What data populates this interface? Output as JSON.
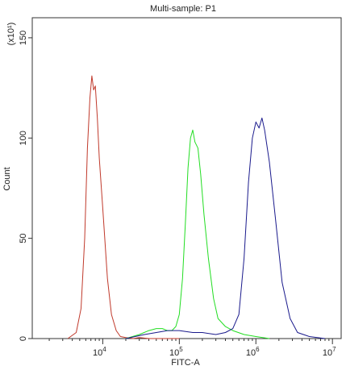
{
  "chart_data": {
    "type": "line",
    "title": "Multi-sample: P1",
    "xlabel": "FITC-A",
    "ylabel": "Count",
    "y_multiplier_label": "(x10¹)",
    "x_scale": "log",
    "xlim": [
      1200,
      13000000
    ],
    "ylim": [
      0,
      160
    ],
    "x_ticks": [
      {
        "value": 10000,
        "base": "10",
        "exp": "4"
      },
      {
        "value": 100000,
        "base": "10",
        "exp": "5"
      },
      {
        "value": 1000000,
        "base": "10",
        "exp": "6"
      },
      {
        "value": 10000000,
        "base": "10",
        "exp": "7"
      }
    ],
    "y_ticks": [
      0,
      50,
      100,
      150
    ],
    "grid": false,
    "series": [
      {
        "color": "#c0392b",
        "x": [
          3500,
          4500,
          5200,
          5800,
          6300,
          6800,
          7200,
          7600,
          8000,
          8500,
          9000,
          10000,
          11500,
          13000,
          15000,
          17000,
          20000,
          25000,
          30000,
          40000,
          60000,
          100000
        ],
        "y": [
          0,
          3,
          15,
          50,
          95,
          120,
          131,
          124,
          126,
          110,
          90,
          65,
          30,
          12,
          4,
          1,
          0.5,
          0,
          0.5,
          0,
          0,
          0
        ]
      },
      {
        "color": "#22dd22",
        "x": [
          20000,
          30000,
          40000,
          50000,
          60000,
          70000,
          80000,
          90000,
          100000,
          110000,
          120000,
          130000,
          140000,
          150000,
          160000,
          175000,
          190000,
          210000,
          240000,
          280000,
          320000,
          400000,
          500000,
          700000,
          1000000,
          1500000
        ],
        "y": [
          0,
          2,
          4,
          5,
          5,
          4,
          4,
          6,
          12,
          30,
          58,
          85,
          100,
          104,
          98,
          95,
          82,
          62,
          40,
          20,
          10,
          6,
          4,
          2,
          1,
          0
        ]
      },
      {
        "color": "#1a1a8c",
        "x": [
          20000,
          35000,
          50000,
          70000,
          100000,
          150000,
          200000,
          300000,
          400000,
          500000,
          600000,
          700000,
          800000,
          900000,
          1000000,
          1100000,
          1200000,
          1300000,
          1500000,
          1800000,
          2200000,
          2800000,
          3500000,
          5000000,
          8000000
        ],
        "y": [
          0,
          2,
          3,
          4,
          4,
          3,
          3,
          2,
          3,
          5,
          12,
          40,
          78,
          100,
          108,
          105,
          110,
          104,
          88,
          60,
          28,
          10,
          3,
          1,
          0
        ]
      }
    ]
  }
}
